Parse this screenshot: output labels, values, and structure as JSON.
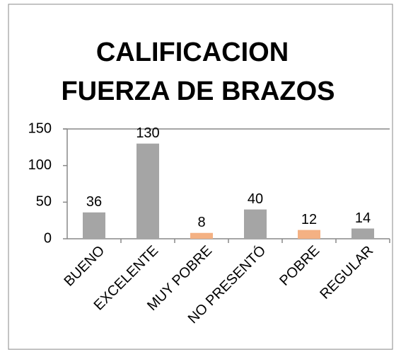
{
  "chart_data": {
    "type": "bar",
    "title": [
      "CALIFICACION",
      "FUERZA DE BRAZOS"
    ],
    "categories": [
      "BUENO",
      "EXCELENTE",
      "MUY POBRE",
      "NO PRESENTÓ",
      "POBRE",
      "REGULAR"
    ],
    "values": [
      36,
      130,
      8,
      40,
      12,
      14
    ],
    "colors": [
      "#a5a5a5",
      "#a5a5a5",
      "#f4b183",
      "#a5a5a5",
      "#f4b183",
      "#a5a5a5"
    ],
    "ylim": [
      0,
      150
    ],
    "yticks": [
      0,
      50,
      100,
      150
    ],
    "grid": false
  }
}
